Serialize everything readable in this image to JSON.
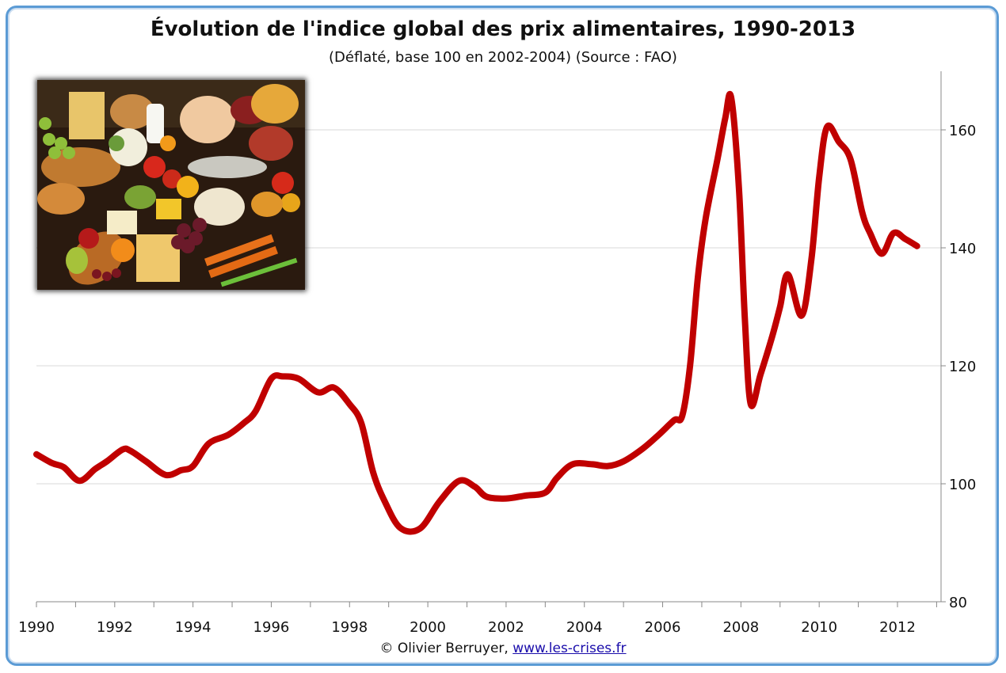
{
  "chart_data": {
    "type": "line",
    "title": "Évolution de l'indice global des prix alimentaires, 1990-2013",
    "subtitle": "(Déflaté, base 100 en 2002-2004) (Source : FAO)",
    "xlim": [
      1990,
      2013.1
    ],
    "ylim": [
      80,
      170
    ],
    "x_ticks": [
      1990,
      1992,
      1994,
      1996,
      1998,
      2000,
      2002,
      2004,
      2006,
      2008,
      2010,
      2012
    ],
    "y_ticks": [
      80,
      100,
      120,
      140,
      160
    ],
    "grid": "horizontal",
    "y_axis_position": "right",
    "series": [
      {
        "color": "#c00000",
        "points": [
          [
            1990.0,
            105.0
          ],
          [
            1990.4,
            103.5
          ],
          [
            1990.7,
            102.8
          ],
          [
            1991.1,
            100.5
          ],
          [
            1991.5,
            102.5
          ],
          [
            1991.8,
            103.8
          ],
          [
            1992.2,
            105.8
          ],
          [
            1992.4,
            105.6
          ],
          [
            1992.8,
            103.8
          ],
          [
            1993.3,
            101.5
          ],
          [
            1993.7,
            102.3
          ],
          [
            1994.0,
            103.0
          ],
          [
            1994.4,
            106.8
          ],
          [
            1994.9,
            108.3
          ],
          [
            1995.3,
            110.3
          ],
          [
            1995.6,
            112.3
          ],
          [
            1996.0,
            117.8
          ],
          [
            1996.3,
            118.2
          ],
          [
            1996.7,
            117.8
          ],
          [
            1997.2,
            115.5
          ],
          [
            1997.6,
            116.3
          ],
          [
            1998.0,
            113.5
          ],
          [
            1998.3,
            110.3
          ],
          [
            1998.6,
            102.0
          ],
          [
            1998.9,
            97.0
          ],
          [
            1999.3,
            92.5
          ],
          [
            1999.8,
            92.4
          ],
          [
            2000.3,
            97.0
          ],
          [
            2000.8,
            100.5
          ],
          [
            2001.2,
            99.5
          ],
          [
            2001.5,
            97.8
          ],
          [
            2002.0,
            97.5
          ],
          [
            2002.5,
            98.0
          ],
          [
            2003.0,
            98.5
          ],
          [
            2003.3,
            101.0
          ],
          [
            2003.7,
            103.3
          ],
          [
            2004.2,
            103.3
          ],
          [
            2004.6,
            103.0
          ],
          [
            2005.0,
            103.8
          ],
          [
            2005.5,
            106.0
          ],
          [
            2005.9,
            108.3
          ],
          [
            2006.3,
            110.8
          ],
          [
            2006.5,
            111.5
          ],
          [
            2006.7,
            120.0
          ],
          [
            2006.9,
            135.0
          ],
          [
            2007.1,
            145.0
          ],
          [
            2007.4,
            155.0
          ],
          [
            2007.6,
            162.0
          ],
          [
            2007.75,
            165.5
          ],
          [
            2007.95,
            150.0
          ],
          [
            2008.1,
            128.0
          ],
          [
            2008.25,
            113.5
          ],
          [
            2008.5,
            118.5
          ],
          [
            2008.8,
            125.0
          ],
          [
            2009.0,
            130.0
          ],
          [
            2009.2,
            135.5
          ],
          [
            2009.55,
            128.5
          ],
          [
            2009.8,
            138.0
          ],
          [
            2010.0,
            152.0
          ],
          [
            2010.2,
            160.5
          ],
          [
            2010.5,
            158.0
          ],
          [
            2010.8,
            155.0
          ],
          [
            2011.1,
            146.0
          ],
          [
            2011.3,
            142.5
          ],
          [
            2011.6,
            139.0
          ],
          [
            2011.9,
            142.5
          ],
          [
            2012.2,
            141.5
          ],
          [
            2012.5,
            140.3
          ]
        ]
      }
    ]
  },
  "credit": {
    "author": "© Olivier Berruyer, ",
    "link": "www.les-crises.fr"
  },
  "photo": {
    "description_icon": "food-assortment-photo"
  }
}
